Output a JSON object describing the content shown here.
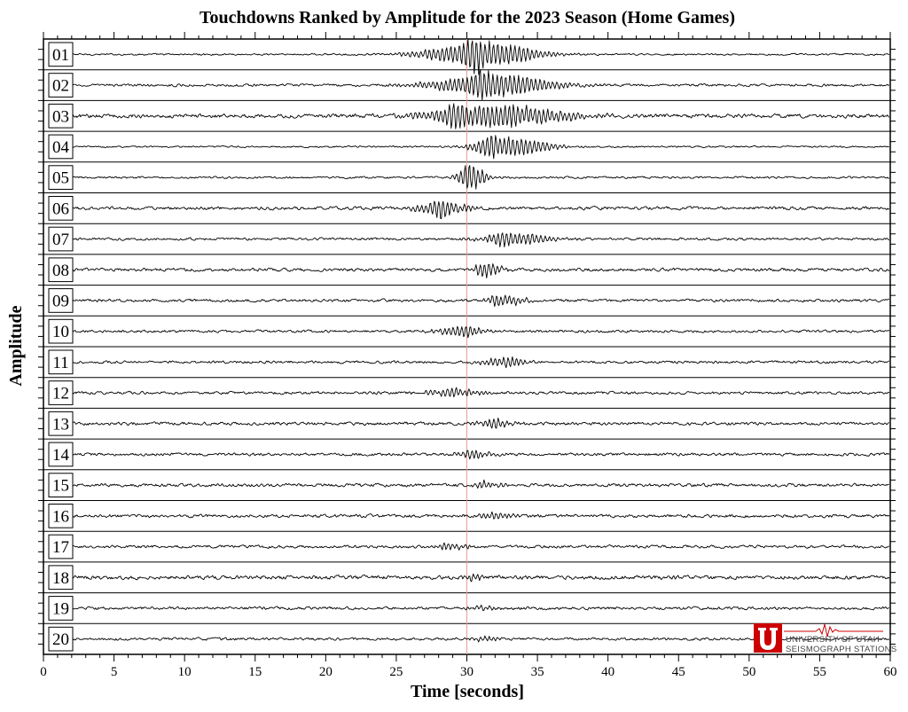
{
  "chart_data": {
    "type": "line",
    "title": "Touchdowns Ranked by Amplitude for the 2023 Season (Home Games)",
    "xlabel": "Time [seconds]",
    "ylabel": "Amplitude",
    "xlim": [
      0,
      60
    ],
    "x_ticks": [
      0,
      5,
      10,
      15,
      20,
      25,
      30,
      35,
      40,
      45,
      50,
      55,
      60
    ],
    "reference_line_x": 30,
    "reference_line_color": "#e8a090",
    "trace_color": "#000000",
    "traces": [
      {
        "label": "01",
        "peak_window": [
          25.5,
          36.5
        ],
        "peak_center": 30.5,
        "relative_peak": 1.0,
        "noise": 0.1
      },
      {
        "label": "02",
        "peak_window": [
          26,
          38
        ],
        "peak_center": 31.0,
        "relative_peak": 0.85,
        "noise": 0.14
      },
      {
        "label": "03",
        "peak_window": [
          25.5,
          39
        ],
        "peak_center": 29.0,
        "relative_peak": 0.9,
        "noise": 0.22
      },
      {
        "label": "04",
        "peak_window": [
          29.5,
          37
        ],
        "peak_center": 31.5,
        "relative_peak": 0.8,
        "noise": 0.1
      },
      {
        "label": "05",
        "peak_window": [
          29,
          32
        ],
        "peak_center": 30.0,
        "relative_peak": 0.75,
        "noise": 0.12
      },
      {
        "label": "06",
        "peak_window": [
          25.5,
          31
        ],
        "peak_center": 28.0,
        "relative_peak": 0.5,
        "noise": 0.18
      },
      {
        "label": "07",
        "peak_window": [
          30,
          37
        ],
        "peak_center": 32.5,
        "relative_peak": 0.45,
        "noise": 0.14
      },
      {
        "label": "08",
        "peak_window": [
          30,
          33
        ],
        "peak_center": 31.2,
        "relative_peak": 0.45,
        "noise": 0.18
      },
      {
        "label": "09",
        "peak_window": [
          31,
          35
        ],
        "peak_center": 32.0,
        "relative_peak": 0.35,
        "noise": 0.16
      },
      {
        "label": "10",
        "peak_window": [
          27,
          32
        ],
        "peak_center": 30.0,
        "relative_peak": 0.35,
        "noise": 0.15
      },
      {
        "label": "11",
        "peak_window": [
          30,
          35
        ],
        "peak_center": 33.0,
        "relative_peak": 0.28,
        "noise": 0.15
      },
      {
        "label": "12",
        "peak_window": [
          26,
          32
        ],
        "peak_center": 29.0,
        "relative_peak": 0.25,
        "noise": 0.16
      },
      {
        "label": "13",
        "peak_window": [
          30,
          34
        ],
        "peak_center": 32.0,
        "relative_peak": 0.25,
        "noise": 0.18
      },
      {
        "label": "14",
        "peak_window": [
          28,
          33
        ],
        "peak_center": 30.5,
        "relative_peak": 0.22,
        "noise": 0.16
      },
      {
        "label": "15",
        "peak_window": [
          30,
          33
        ],
        "peak_center": 31.0,
        "relative_peak": 0.2,
        "noise": 0.18
      },
      {
        "label": "16",
        "peak_window": [
          30,
          34
        ],
        "peak_center": 32.0,
        "relative_peak": 0.18,
        "noise": 0.18
      },
      {
        "label": "17",
        "peak_window": [
          27,
          31
        ],
        "peak_center": 28.5,
        "relative_peak": 0.18,
        "noise": 0.16
      },
      {
        "label": "18",
        "peak_window": [
          29,
          32
        ],
        "peak_center": 30.5,
        "relative_peak": 0.15,
        "noise": 0.22
      },
      {
        "label": "19",
        "peak_window": [
          30,
          33
        ],
        "peak_center": 31.0,
        "relative_peak": 0.12,
        "noise": 0.16
      },
      {
        "label": "20",
        "peak_window": [
          30,
          33
        ],
        "peak_center": 31.0,
        "relative_peak": 0.12,
        "noise": 0.15
      }
    ]
  },
  "logo": {
    "line1": "UNIVERSITY OF UTAH",
    "line2": "SEISMOGRAPH STATIONS",
    "brand_color": "#cc0000"
  }
}
